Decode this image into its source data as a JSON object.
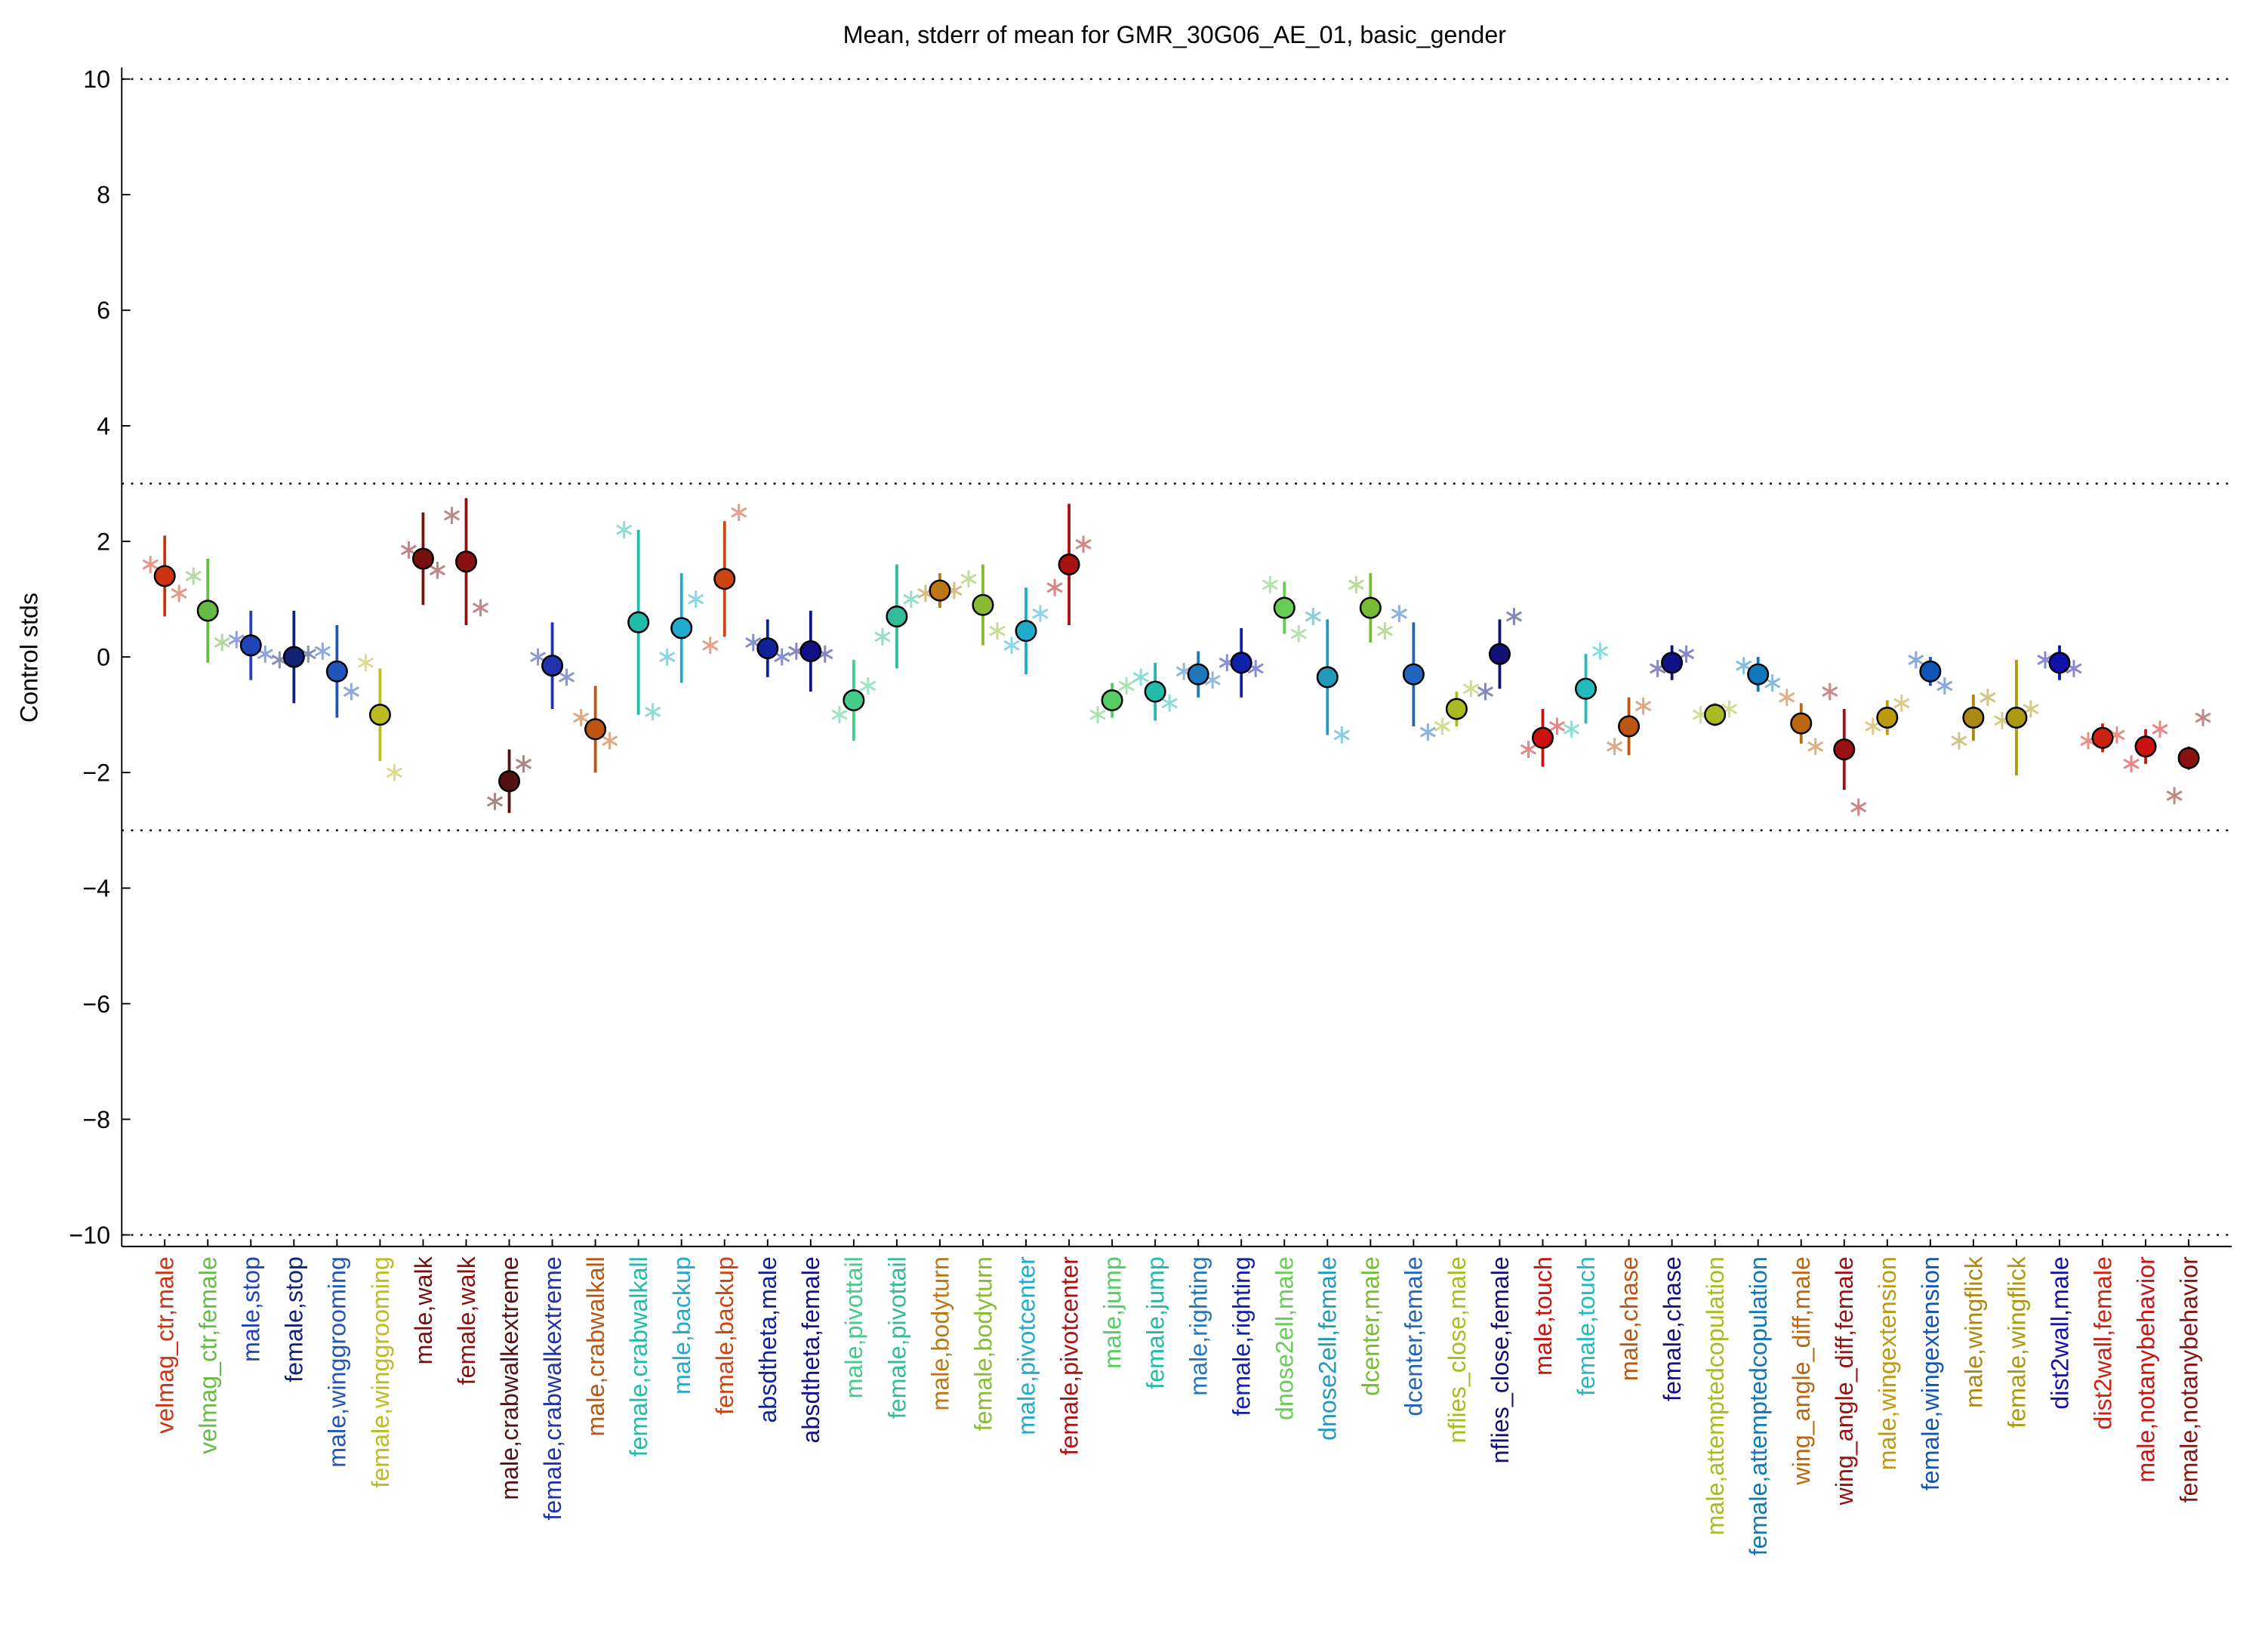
{
  "chart_data": {
    "type": "errorbar",
    "title": "Mean, stderr of mean for GMR_30G06_AE_01, basic_gender",
    "y_label": "Control stds",
    "ylim": [
      -10.2,
      10.2
    ],
    "yticks": [
      {
        "value": -10,
        "label": "−10"
      },
      {
        "value": -8,
        "label": "−8"
      },
      {
        "value": -6,
        "label": "−6"
      },
      {
        "value": -4,
        "label": "−4"
      },
      {
        "value": -2,
        "label": "−2"
      },
      0,
      2,
      4,
      6,
      8,
      10
    ],
    "reference_lines": [
      -10,
      -3,
      3,
      10
    ],
    "categories": [
      "velmag_ctr,male",
      "velmag_ctr,female",
      "male,stop",
      "female,stop",
      "male,winggrooming",
      "female,winggrooming",
      "male,walk",
      "female,walk",
      "male,crabwalkextreme",
      "female,crabwalkextreme",
      "male,crabwalkall",
      "female,crabwalkall",
      "male,backup",
      "female,backup",
      "absdtheta,male",
      "absdtheta,female",
      "male,pivottail",
      "female,pivottail",
      "male,bodyturn",
      "female,bodyturn",
      "male,pivotcenter",
      "female,pivotcenter",
      "male,jump",
      "female,jump",
      "male,righting",
      "female,righting",
      "dnose2ell,male",
      "dnose2ell,female",
      "dcenter,male",
      "dcenter,female",
      "nflies_close,male",
      "nflies_close,female",
      "male,touch",
      "female,touch",
      "male,chase",
      "female,chase",
      "male,attemptedcopulation",
      "female,attemptedcopulation",
      "wing_angle_diff,male",
      "wing_angle_diff,female",
      "male,wingextension",
      "female,wingextension",
      "male,wingflick",
      "female,wingflick",
      "dist2wall,male",
      "dist2wall,female",
      "male,notanybehavior",
      "female,notanybehavior"
    ],
    "values": [
      1.4,
      0.8,
      0.2,
      0.0,
      -0.25,
      -1.0,
      1.7,
      1.65,
      -2.15,
      -0.15,
      -1.25,
      0.6,
      0.5,
      1.35,
      0.15,
      0.1,
      -0.75,
      0.7,
      1.15,
      0.9,
      0.45,
      1.6,
      -0.75,
      -0.6,
      -0.3,
      -0.1,
      0.85,
      -0.35,
      0.85,
      -0.3,
      -0.9,
      0.05,
      -1.4,
      -0.55,
      -1.2,
      -0.1,
      -1.0,
      -0.3,
      -1.15,
      -1.6,
      -1.05,
      -0.25,
      -1.05,
      -1.05,
      -0.1,
      -1.4,
      -1.55,
      -1.75
    ],
    "errors": [
      0.7,
      0.9,
      0.6,
      0.8,
      0.8,
      0.8,
      0.8,
      1.1,
      0.55,
      0.75,
      0.75,
      1.6,
      0.95,
      1.0,
      0.5,
      0.7,
      0.7,
      0.9,
      0.3,
      0.7,
      0.75,
      1.05,
      0.3,
      0.5,
      0.4,
      0.6,
      0.45,
      1.0,
      0.6,
      0.9,
      0.3,
      0.6,
      0.5,
      0.6,
      0.5,
      0.3,
      0.2,
      0.3,
      0.35,
      0.7,
      0.3,
      0.25,
      0.4,
      1.0,
      0.3,
      0.25,
      0.3,
      0.2
    ],
    "markers_left": [
      1.6,
      1.4,
      0.3,
      -0.05,
      0.1,
      -0.1,
      1.85,
      2.45,
      -2.5,
      0.0,
      -1.05,
      2.2,
      0.0,
      0.2,
      0.25,
      0.1,
      -1.0,
      0.35,
      1.1,
      1.35,
      0.2,
      1.2,
      -1.0,
      -0.35,
      -0.25,
      -0.1,
      1.25,
      0.7,
      1.25,
      0.75,
      -1.2,
      -0.6,
      -1.6,
      -1.25,
      -1.55,
      -0.2,
      -1.0,
      -0.15,
      -0.7,
      -0.6,
      -1.2,
      -0.05,
      -1.45,
      -1.1,
      -0.05,
      -1.45,
      -1.85,
      -2.4
    ],
    "markers_right": [
      1.1,
      0.25,
      0.05,
      0.05,
      -0.6,
      -2.0,
      1.5,
      0.85,
      -1.85,
      -0.35,
      -1.45,
      -0.95,
      1.0,
      2.5,
      0.0,
      0.05,
      -0.5,
      1.0,
      1.15,
      0.45,
      0.75,
      1.95,
      -0.5,
      -0.8,
      -0.4,
      -0.2,
      0.4,
      -1.35,
      0.45,
      -1.3,
      -0.55,
      0.7,
      -1.2,
      0.1,
      -0.85,
      0.05,
      -0.9,
      -0.45,
      -1.55,
      -2.6,
      -0.8,
      -0.5,
      -0.7,
      -0.9,
      -0.2,
      -1.35,
      -1.25,
      -1.05
    ],
    "colors": [
      "#cc3311",
      "#66bb44",
      "#2244bb",
      "#112277",
      "#2255bb",
      "#bbbb22",
      "#771111",
      "#881111",
      "#551111",
      "#2233aa",
      "#bb5511",
      "#22bbaa",
      "#22aacc",
      "#cc4411",
      "#112299",
      "#111188",
      "#44cc88",
      "#33bb99",
      "#bb7711",
      "#88bb33",
      "#22aacc",
      "#aa1111",
      "#55cc66",
      "#22bbaa",
      "#2277bb",
      "#1122aa",
      "#66cc55",
      "#2299bb",
      "#77bb33",
      "#2266bb",
      "#aabb22",
      "#111177",
      "#cc1111",
      "#22bbbb",
      "#bb5511",
      "#111188",
      "#aabb22",
      "#1177bb",
      "#bb6611",
      "#991111",
      "#bb9911",
      "#1155bb",
      "#aa8811",
      "#aa9911",
      "#1111aa",
      "#cc2211",
      "#cc1111",
      "#881111"
    ]
  }
}
